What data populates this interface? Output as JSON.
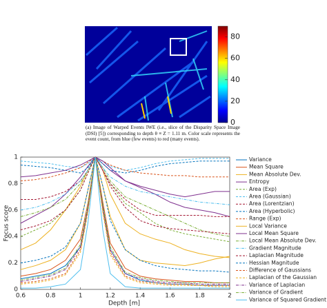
{
  "chart_data": [
    {
      "type": "colorbar",
      "caption": "(a) Image of Warped Events IWE (i.e., slice of the Disparity Space Image (DSI) [5]) corresponding to depth θ ≡ Z = 1.11 m. Color scale represents the event count, from blue (few events) to red (many events).",
      "zlim": [
        0,
        90
      ],
      "zticks": [
        0,
        20,
        40,
        60,
        80
      ],
      "colormap": "jet"
    },
    {
      "type": "line",
      "xlabel": "Depth [m]",
      "ylabel": "Focus score",
      "grid": false,
      "legend": "outside right",
      "x": [
        0.6,
        0.7,
        0.8,
        0.9,
        1.0,
        1.05,
        1.1,
        1.15,
        1.2,
        1.3,
        1.4,
        1.5,
        1.6,
        1.7,
        1.8,
        1.9,
        2.0
      ],
      "xlim": [
        0.6,
        2
      ],
      "xticks": [
        0.6,
        0.8,
        1,
        1.2,
        1.4,
        1.6,
        1.8,
        2
      ],
      "ylim": [
        0,
        1
      ],
      "yticks": [
        0,
        0.2,
        0.4,
        0.6,
        0.8,
        1
      ],
      "series": [
        {
          "name": "Variance",
          "color": "#0072bd",
          "dash": "solid",
          "values": [
            0.08,
            0.1,
            0.12,
            0.18,
            0.32,
            0.6,
            1,
            0.62,
            0.3,
            0.12,
            0.07,
            0.05,
            0.04,
            0.04,
            0.03,
            0.03,
            0.03
          ]
        },
        {
          "name": "Mean Square",
          "color": "#d95319",
          "dash": "solid",
          "values": [
            0.1,
            0.12,
            0.15,
            0.22,
            0.38,
            0.65,
            1,
            0.66,
            0.35,
            0.16,
            0.1,
            0.08,
            0.07,
            0.06,
            0.06,
            0.05,
            0.05
          ]
        },
        {
          "name": "Mean Absolute Dev.",
          "color": "#edb120",
          "dash": "solid",
          "values": [
            0.3,
            0.35,
            0.45,
            0.6,
            0.78,
            0.9,
            1,
            0.9,
            0.72,
            0.5,
            0.42,
            0.38,
            0.35,
            0.3,
            0.27,
            0.25,
            0.24
          ]
        },
        {
          "name": "Entropy",
          "color": "#7e2f8e",
          "dash": "solid",
          "values": [
            0.5,
            0.56,
            0.62,
            0.72,
            0.85,
            0.93,
            1,
            0.95,
            0.9,
            0.82,
            0.77,
            0.72,
            0.66,
            0.62,
            0.6,
            0.58,
            0.55
          ]
        },
        {
          "name": "Area (Exp)",
          "color": "#77ac30",
          "dash": "dashed",
          "values": [
            0.4,
            0.45,
            0.5,
            0.6,
            0.75,
            0.88,
            1,
            0.9,
            0.8,
            0.65,
            0.58,
            0.5,
            0.45,
            0.42,
            0.4,
            0.38,
            0.36
          ]
        },
        {
          "name": "Area (Gaussian)",
          "color": "#4dbeee",
          "dash": "dashed",
          "values": [
            0.97,
            0.96,
            0.95,
            0.93,
            0.92,
            0.95,
            1,
            0.97,
            0.93,
            0.9,
            0.92,
            0.95,
            0.97,
            0.98,
            0.99,
            0.99,
            0.99
          ]
        },
        {
          "name": "Area (Lorentzian)",
          "color": "#a2142f",
          "dash": "dashed",
          "values": [
            0.68,
            0.68,
            0.7,
            0.74,
            0.82,
            0.9,
            1,
            0.9,
            0.8,
            0.68,
            0.6,
            0.56,
            0.56,
            0.56,
            0.56,
            0.55,
            0.55
          ]
        },
        {
          "name": "Area (Hyperbolic)",
          "color": "#0072bd",
          "dash": "dashed",
          "values": [
            0.94,
            0.93,
            0.92,
            0.9,
            0.88,
            0.92,
            1,
            0.95,
            0.9,
            0.88,
            0.9,
            0.93,
            0.95,
            0.96,
            0.97,
            0.97,
            0.97
          ]
        },
        {
          "name": "Range (Exp)",
          "color": "#d95319",
          "dash": "dashed",
          "values": [
            0.82,
            0.83,
            0.85,
            0.88,
            0.92,
            0.96,
            1,
            0.97,
            0.94,
            0.9,
            0.88,
            0.87,
            0.86,
            0.86,
            0.85,
            0.85,
            0.85
          ]
        },
        {
          "name": "Local Variance",
          "color": "#edb120",
          "dash": "solid",
          "values": [
            0.15,
            0.18,
            0.22,
            0.3,
            0.5,
            0.75,
            1,
            0.78,
            0.55,
            0.3,
            0.22,
            0.2,
            0.19,
            0.18,
            0.2,
            0.23,
            0.25
          ]
        },
        {
          "name": "Local Mean Square",
          "color": "#7e2f8e",
          "dash": "solid",
          "values": [
            0.85,
            0.86,
            0.88,
            0.9,
            0.94,
            0.97,
            1,
            0.97,
            0.92,
            0.82,
            0.78,
            0.75,
            0.72,
            0.7,
            0.72,
            0.74,
            0.74
          ]
        },
        {
          "name": "Local Mean Absolute Dev.",
          "color": "#77ac30",
          "dash": "dashdot",
          "values": [
            0.55,
            0.58,
            0.62,
            0.68,
            0.8,
            0.9,
            1,
            0.92,
            0.82,
            0.7,
            0.65,
            0.6,
            0.55,
            0.5,
            0.45,
            0.42,
            0.4
          ]
        },
        {
          "name": "Gradient Magnitude",
          "color": "#4dbeee",
          "dash": "dashdot",
          "values": [
            0.6,
            0.62,
            0.66,
            0.72,
            0.82,
            0.9,
            1,
            0.92,
            0.85,
            0.78,
            0.74,
            0.72,
            0.7,
            0.68,
            0.66,
            0.65,
            0.64
          ]
        },
        {
          "name": "Laplacian Magnitude",
          "color": "#a2142f",
          "dash": "dashed",
          "values": [
            0.45,
            0.48,
            0.52,
            0.6,
            0.75,
            0.88,
            1,
            0.9,
            0.78,
            0.62,
            0.52,
            0.48,
            0.46,
            0.45,
            0.44,
            0.43,
            0.42
          ]
        },
        {
          "name": "Hessian Magnitude",
          "color": "#0072bd",
          "dash": "dashed",
          "values": [
            0.2,
            0.22,
            0.25,
            0.32,
            0.5,
            0.75,
            1,
            0.78,
            0.52,
            0.3,
            0.22,
            0.18,
            0.16,
            0.15,
            0.14,
            0.14,
            0.13
          ]
        },
        {
          "name": "Difference of Gaussians",
          "color": "#d95319",
          "dash": "dashed",
          "values": [
            0.05,
            0.06,
            0.08,
            0.12,
            0.3,
            0.6,
            1,
            0.6,
            0.28,
            0.1,
            0.06,
            0.05,
            0.04,
            0.04,
            0.03,
            0.03,
            0.03
          ]
        },
        {
          "name": "Laplacian of the Gaussian",
          "color": "#edb120",
          "dash": "dashed",
          "values": [
            0.04,
            0.05,
            0.07,
            0.11,
            0.28,
            0.58,
            1,
            0.58,
            0.26,
            0.09,
            0.05,
            0.04,
            0.03,
            0.03,
            0.03,
            0.02,
            0.02
          ]
        },
        {
          "name": "Variance of Laplacian",
          "color": "#7e2f8e",
          "dash": "dashdot",
          "values": [
            0.06,
            0.08,
            0.1,
            0.15,
            0.32,
            0.62,
            1,
            0.62,
            0.3,
            0.12,
            0.08,
            0.06,
            0.05,
            0.05,
            0.04,
            0.04,
            0.04
          ]
        },
        {
          "name": "Variance of Gradient",
          "color": "#77ac30",
          "dash": "dashdot",
          "values": [
            0.07,
            0.09,
            0.11,
            0.16,
            0.34,
            0.64,
            1,
            0.64,
            0.32,
            0.13,
            0.09,
            0.07,
            0.06,
            0.05,
            0.05,
            0.05,
            0.05
          ]
        },
        {
          "name": "Variance of Squared Gradient",
          "color": "#4dbeee",
          "dash": "solid",
          "values": [
            0.01,
            0.01,
            0.02,
            0.04,
            0.15,
            0.5,
            1,
            0.45,
            0.12,
            0.02,
            0.01,
            0.01,
            0.01,
            0.01,
            0.01,
            0.01,
            0.01
          ]
        }
      ]
    }
  ]
}
